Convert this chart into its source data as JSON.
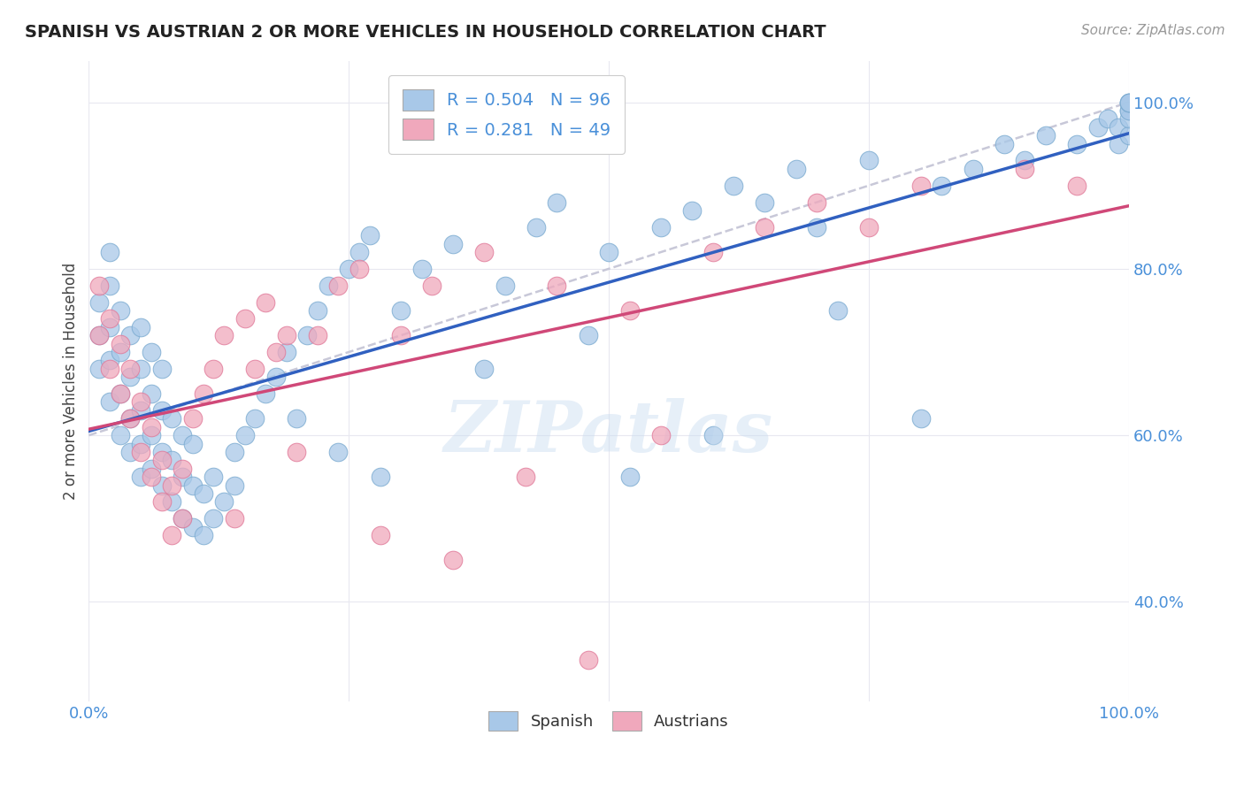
{
  "title": "SPANISH VS AUSTRIAN 2 OR MORE VEHICLES IN HOUSEHOLD CORRELATION CHART",
  "source": "Source: ZipAtlas.com",
  "ylabel": "2 or more Vehicles in Household",
  "xlim": [
    0.0,
    1.0
  ],
  "ylim": [
    0.28,
    1.05
  ],
  "xtick_positions": [
    0.0,
    0.25,
    0.5,
    0.75,
    1.0
  ],
  "xticklabels": [
    "0.0%",
    "",
    "",
    "",
    "100.0%"
  ],
  "ytick_positions": [
    0.4,
    0.6,
    0.8,
    1.0
  ],
  "ytick_labels": [
    "40.0%",
    "60.0%",
    "80.0%",
    "100.0%"
  ],
  "spanish_R": 0.504,
  "spanish_N": 96,
  "austrian_R": 0.281,
  "austrian_N": 49,
  "blue_color": "#A8C8E8",
  "pink_color": "#F0A8BC",
  "blue_edge_color": "#7AAAD0",
  "pink_edge_color": "#E07898",
  "blue_line_color": "#3060C0",
  "pink_line_color": "#D04878",
  "ref_line_color": "#C8C8D8",
  "watermark": "ZIPatlas",
  "background_color": "#FFFFFF",
  "grid_color": "#E8E8F0",
  "blue_line_intercept": 0.62,
  "blue_line_slope": 0.38,
  "pink_line_intercept": 0.58,
  "pink_line_slope": 0.38,
  "ref_line_intercept": 0.6,
  "ref_line_slope": 0.4,
  "spanish_x": [
    0.01,
    0.01,
    0.01,
    0.02,
    0.02,
    0.02,
    0.02,
    0.02,
    0.03,
    0.03,
    0.03,
    0.03,
    0.04,
    0.04,
    0.04,
    0.04,
    0.05,
    0.05,
    0.05,
    0.05,
    0.05,
    0.06,
    0.06,
    0.06,
    0.06,
    0.07,
    0.07,
    0.07,
    0.07,
    0.08,
    0.08,
    0.08,
    0.09,
    0.09,
    0.09,
    0.1,
    0.1,
    0.1,
    0.11,
    0.11,
    0.12,
    0.12,
    0.13,
    0.14,
    0.14,
    0.15,
    0.16,
    0.17,
    0.18,
    0.19,
    0.2,
    0.21,
    0.22,
    0.23,
    0.24,
    0.25,
    0.26,
    0.27,
    0.28,
    0.3,
    0.32,
    0.35,
    0.38,
    0.4,
    0.43,
    0.45,
    0.48,
    0.5,
    0.52,
    0.55,
    0.58,
    0.6,
    0.62,
    0.65,
    0.68,
    0.7,
    0.72,
    0.75,
    0.8,
    0.82,
    0.85,
    0.88,
    0.9,
    0.92,
    0.95,
    0.97,
    0.98,
    0.99,
    0.99,
    1.0,
    1.0,
    1.0,
    1.0,
    1.0,
    1.0,
    1.0
  ],
  "spanish_y": [
    0.68,
    0.72,
    0.76,
    0.64,
    0.69,
    0.73,
    0.78,
    0.82,
    0.6,
    0.65,
    0.7,
    0.75,
    0.58,
    0.62,
    0.67,
    0.72,
    0.55,
    0.59,
    0.63,
    0.68,
    0.73,
    0.56,
    0.6,
    0.65,
    0.7,
    0.54,
    0.58,
    0.63,
    0.68,
    0.52,
    0.57,
    0.62,
    0.5,
    0.55,
    0.6,
    0.49,
    0.54,
    0.59,
    0.48,
    0.53,
    0.5,
    0.55,
    0.52,
    0.54,
    0.58,
    0.6,
    0.62,
    0.65,
    0.67,
    0.7,
    0.62,
    0.72,
    0.75,
    0.78,
    0.58,
    0.8,
    0.82,
    0.84,
    0.55,
    0.75,
    0.8,
    0.83,
    0.68,
    0.78,
    0.85,
    0.88,
    0.72,
    0.82,
    0.55,
    0.85,
    0.87,
    0.6,
    0.9,
    0.88,
    0.92,
    0.85,
    0.75,
    0.93,
    0.62,
    0.9,
    0.92,
    0.95,
    0.93,
    0.96,
    0.95,
    0.97,
    0.98,
    0.95,
    0.97,
    0.99,
    0.96,
    0.98,
    0.99,
    1.0,
    1.0,
    1.0
  ],
  "austrian_x": [
    0.01,
    0.01,
    0.02,
    0.02,
    0.03,
    0.03,
    0.04,
    0.04,
    0.05,
    0.05,
    0.06,
    0.06,
    0.07,
    0.07,
    0.08,
    0.08,
    0.09,
    0.09,
    0.1,
    0.11,
    0.12,
    0.13,
    0.14,
    0.15,
    0.16,
    0.17,
    0.18,
    0.19,
    0.2,
    0.22,
    0.24,
    0.26,
    0.28,
    0.3,
    0.33,
    0.35,
    0.38,
    0.42,
    0.45,
    0.48,
    0.52,
    0.55,
    0.6,
    0.65,
    0.7,
    0.75,
    0.8,
    0.9,
    0.95
  ],
  "austrian_y": [
    0.72,
    0.78,
    0.68,
    0.74,
    0.65,
    0.71,
    0.62,
    0.68,
    0.58,
    0.64,
    0.55,
    0.61,
    0.52,
    0.57,
    0.48,
    0.54,
    0.5,
    0.56,
    0.62,
    0.65,
    0.68,
    0.72,
    0.5,
    0.74,
    0.68,
    0.76,
    0.7,
    0.72,
    0.58,
    0.72,
    0.78,
    0.8,
    0.48,
    0.72,
    0.78,
    0.45,
    0.82,
    0.55,
    0.78,
    0.33,
    0.75,
    0.6,
    0.82,
    0.85,
    0.88,
    0.85,
    0.9,
    0.92,
    0.9
  ]
}
